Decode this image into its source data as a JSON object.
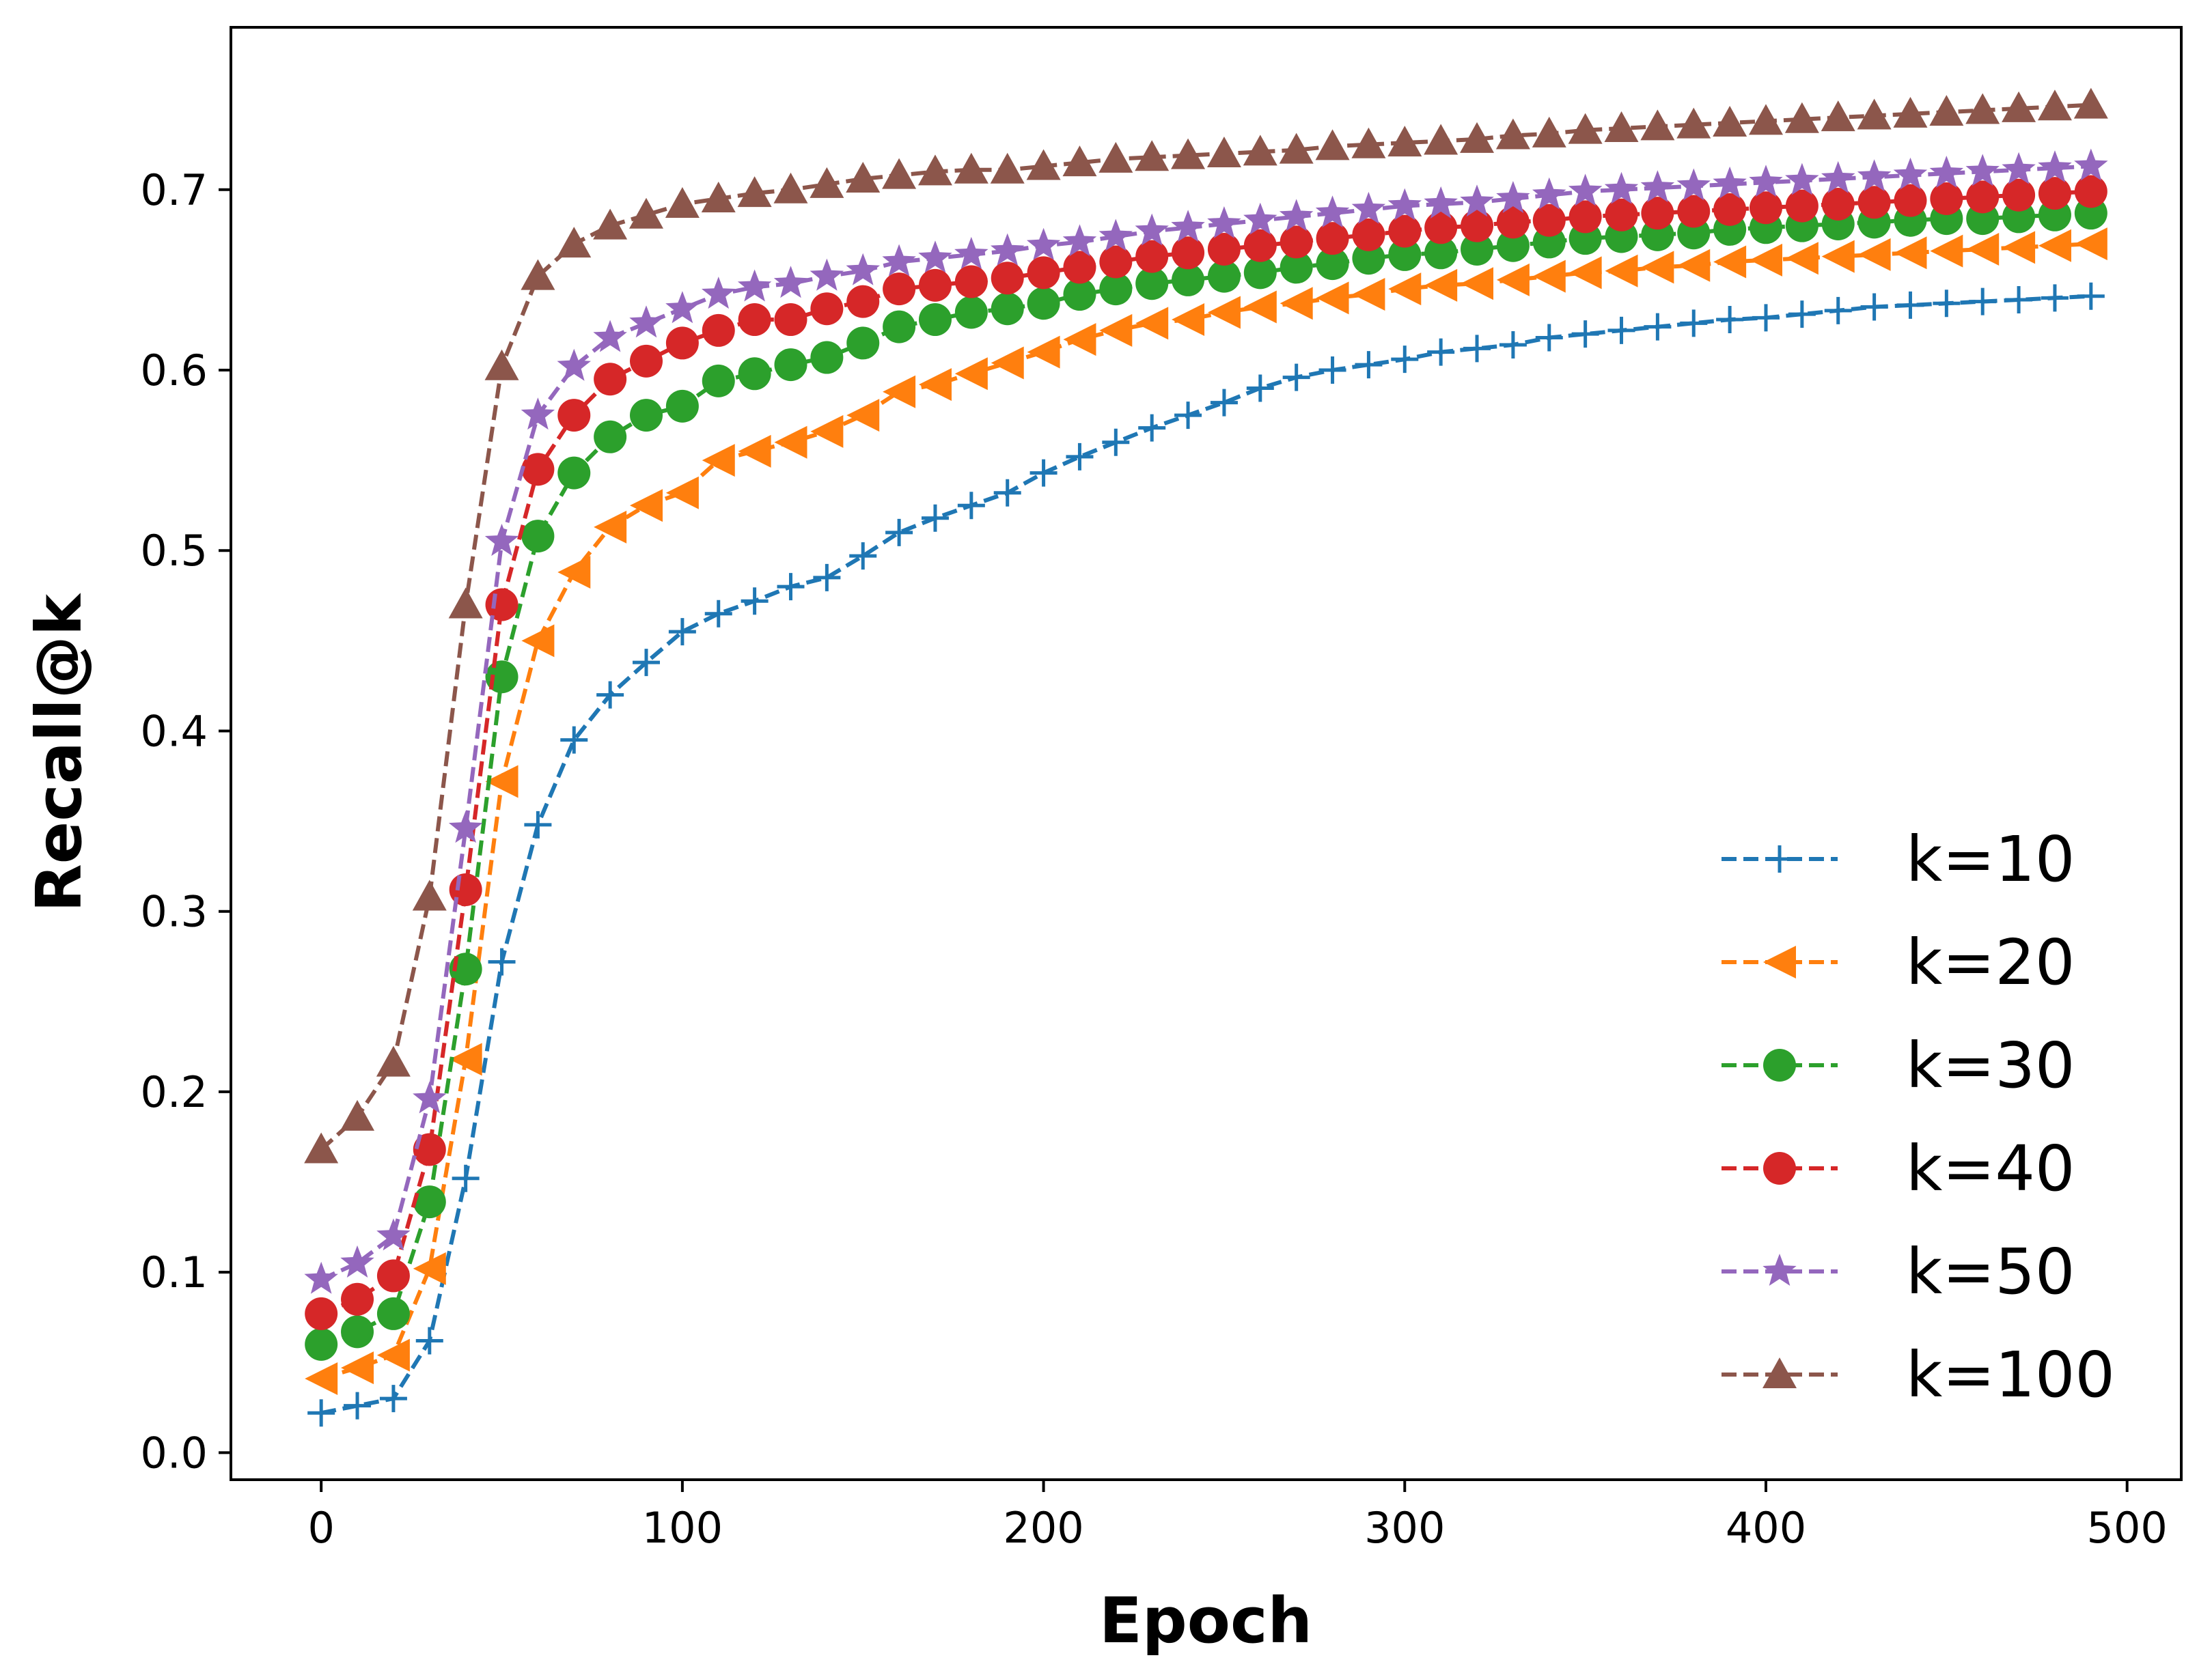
{
  "chart_data": {
    "type": "line",
    "title": "",
    "xlabel": "Epoch",
    "ylabel": "Recall@k",
    "xlim": [
      -25,
      515
    ],
    "ylim": [
      -0.015,
      0.79
    ],
    "xticks": [
      0,
      100,
      200,
      300,
      400,
      500
    ],
    "yticks": [
      0.0,
      0.1,
      0.2,
      0.3,
      0.4,
      0.5,
      0.6,
      0.7
    ],
    "xtick_labels": [
      "0",
      "100",
      "200",
      "300",
      "400",
      "500"
    ],
    "ytick_labels": [
      "0.0",
      "0.1",
      "0.2",
      "0.3",
      "0.4",
      "0.5",
      "0.6",
      "0.7"
    ],
    "grid": false,
    "legend_position": "lower-right",
    "x": [
      0,
      10,
      20,
      30,
      40,
      50,
      60,
      70,
      80,
      90,
      100,
      110,
      120,
      130,
      140,
      150,
      160,
      170,
      180,
      190,
      200,
      210,
      220,
      230,
      240,
      250,
      260,
      270,
      280,
      290,
      300,
      310,
      320,
      330,
      340,
      350,
      360,
      370,
      380,
      390,
      400,
      410,
      420,
      430,
      440,
      450,
      460,
      470,
      480,
      490
    ],
    "series": [
      {
        "name": "k=10",
        "color": "#1f77b4",
        "marker": "plus",
        "values": [
          0.022,
          0.026,
          0.03,
          0.062,
          0.152,
          0.272,
          0.348,
          0.395,
          0.42,
          0.438,
          0.455,
          0.465,
          0.472,
          0.48,
          0.485,
          0.497,
          0.51,
          0.518,
          0.525,
          0.532,
          0.543,
          0.552,
          0.56,
          0.568,
          0.575,
          0.582,
          0.59,
          0.596,
          0.6,
          0.603,
          0.606,
          0.61,
          0.612,
          0.614,
          0.618,
          0.62,
          0.622,
          0.624,
          0.626,
          0.628,
          0.629,
          0.631,
          0.633,
          0.635,
          0.636,
          0.637,
          0.638,
          0.639,
          0.64,
          0.641
        ]
      },
      {
        "name": "k=20",
        "color": "#ff7f0e",
        "marker": "triangle-left",
        "values": [
          0.041,
          0.047,
          0.054,
          0.102,
          0.218,
          0.372,
          0.45,
          0.488,
          0.513,
          0.525,
          0.532,
          0.55,
          0.555,
          0.56,
          0.566,
          0.575,
          0.588,
          0.592,
          0.598,
          0.604,
          0.61,
          0.617,
          0.622,
          0.626,
          0.628,
          0.632,
          0.635,
          0.637,
          0.64,
          0.642,
          0.645,
          0.647,
          0.648,
          0.65,
          0.652,
          0.654,
          0.655,
          0.657,
          0.658,
          0.66,
          0.661,
          0.662,
          0.663,
          0.664,
          0.665,
          0.666,
          0.667,
          0.668,
          0.669,
          0.67
        ]
      },
      {
        "name": "k=30",
        "color": "#2ca02c",
        "marker": "circle",
        "values": [
          0.06,
          0.067,
          0.077,
          0.139,
          0.268,
          0.43,
          0.508,
          0.543,
          0.563,
          0.575,
          0.58,
          0.594,
          0.598,
          0.603,
          0.607,
          0.615,
          0.624,
          0.628,
          0.632,
          0.634,
          0.637,
          0.642,
          0.645,
          0.648,
          0.65,
          0.652,
          0.654,
          0.657,
          0.659,
          0.662,
          0.664,
          0.665,
          0.667,
          0.669,
          0.671,
          0.673,
          0.674,
          0.675,
          0.676,
          0.678,
          0.679,
          0.68,
          0.681,
          0.682,
          0.683,
          0.684,
          0.684,
          0.685,
          0.686,
          0.687
        ]
      },
      {
        "name": "k=40",
        "color": "#d62728",
        "marker": "circle",
        "values": [
          0.077,
          0.085,
          0.098,
          0.168,
          0.312,
          0.47,
          0.545,
          0.575,
          0.595,
          0.605,
          0.615,
          0.622,
          0.628,
          0.628,
          0.634,
          0.638,
          0.645,
          0.647,
          0.649,
          0.651,
          0.654,
          0.657,
          0.66,
          0.663,
          0.665,
          0.667,
          0.669,
          0.671,
          0.673,
          0.675,
          0.677,
          0.679,
          0.68,
          0.682,
          0.683,
          0.685,
          0.686,
          0.687,
          0.688,
          0.689,
          0.69,
          0.691,
          0.692,
          0.693,
          0.694,
          0.695,
          0.696,
          0.697,
          0.698,
          0.699
        ]
      },
      {
        "name": "k=50",
        "color": "#9467bd",
        "marker": "star",
        "values": [
          0.096,
          0.105,
          0.12,
          0.196,
          0.346,
          0.505,
          0.575,
          0.602,
          0.618,
          0.626,
          0.634,
          0.642,
          0.646,
          0.648,
          0.652,
          0.655,
          0.66,
          0.662,
          0.664,
          0.666,
          0.669,
          0.671,
          0.674,
          0.677,
          0.679,
          0.681,
          0.683,
          0.685,
          0.687,
          0.689,
          0.691,
          0.692,
          0.693,
          0.695,
          0.697,
          0.699,
          0.7,
          0.701,
          0.702,
          0.703,
          0.704,
          0.705,
          0.706,
          0.707,
          0.708,
          0.709,
          0.71,
          0.711,
          0.712,
          0.713
        ]
      },
      {
        "name": "k=100",
        "color": "#8c564b",
        "marker": "triangle-up",
        "values": [
          0.168,
          0.186,
          0.216,
          0.308,
          0.47,
          0.602,
          0.652,
          0.67,
          0.68,
          0.686,
          0.692,
          0.695,
          0.698,
          0.7,
          0.703,
          0.706,
          0.708,
          0.71,
          0.711,
          0.711,
          0.713,
          0.715,
          0.717,
          0.718,
          0.719,
          0.72,
          0.721,
          0.722,
          0.724,
          0.725,
          0.726,
          0.727,
          0.728,
          0.73,
          0.731,
          0.733,
          0.734,
          0.735,
          0.736,
          0.737,
          0.738,
          0.739,
          0.74,
          0.741,
          0.742,
          0.743,
          0.744,
          0.745,
          0.746,
          0.747
        ]
      }
    ]
  }
}
